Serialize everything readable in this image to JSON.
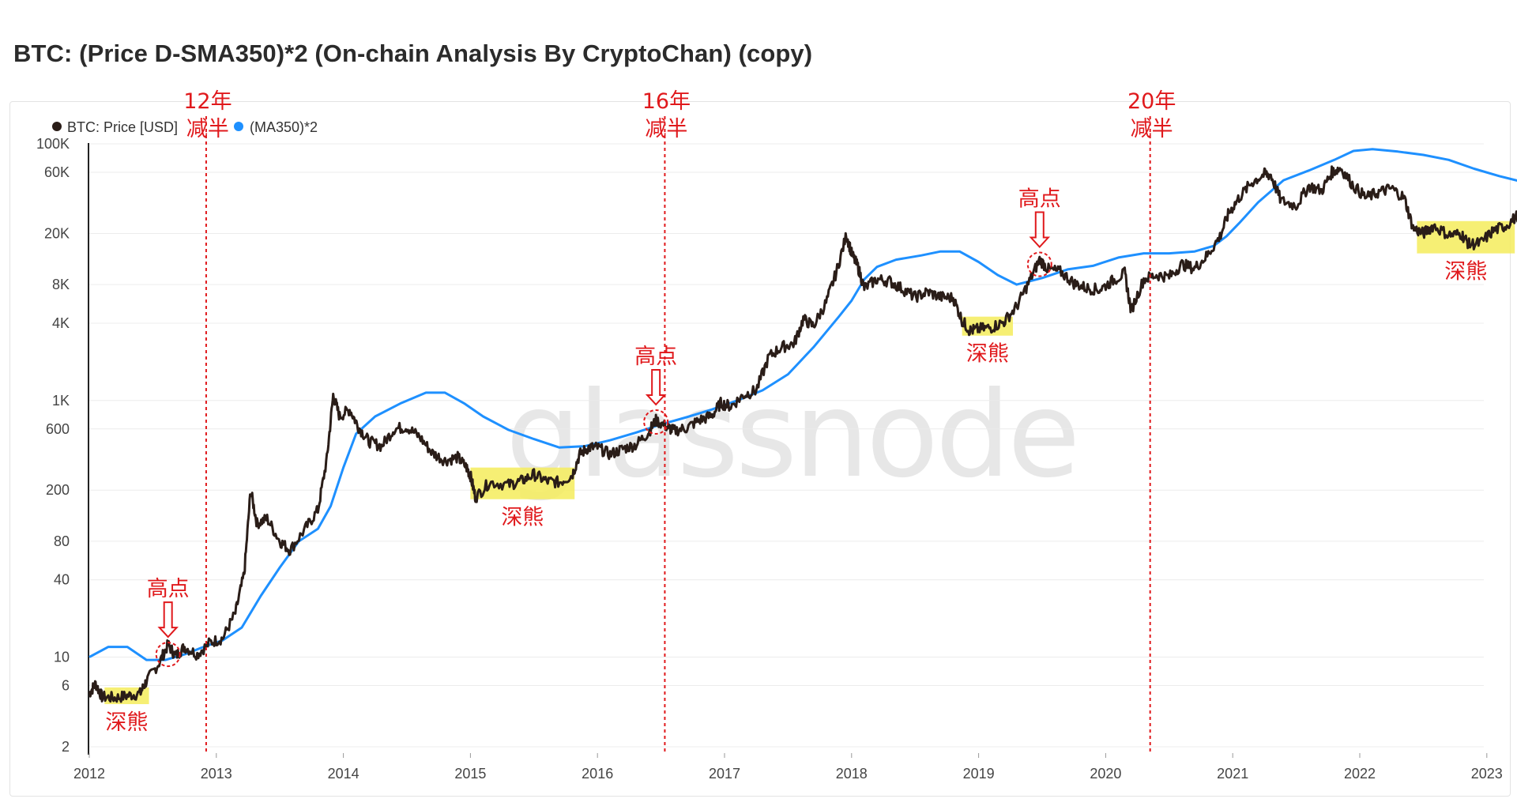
{
  "title": "BTC: (Price D-SMA350)*2 (On-chain Analysis By CryptoChan) (copy)",
  "watermark": "glassnode",
  "chart_data": {
    "type": "line",
    "title": "BTC: (Price D-SMA350)*2 (On-chain Analysis By CryptoChan) (copy)",
    "x_axis": {
      "type": "time",
      "range": [
        2012.0,
        2023.33
      ],
      "tick_labels": [
        "2012",
        "2013",
        "2014",
        "2015",
        "2016",
        "2017",
        "2018",
        "2019",
        "2020",
        "2021",
        "2022",
        "2023"
      ]
    },
    "y_axis": {
      "scale": "log",
      "range": [
        2,
        100000
      ],
      "tick_values": [
        2,
        6,
        10,
        40,
        80,
        200,
        600,
        1000,
        4000,
        8000,
        20000,
        60000,
        100000
      ],
      "tick_labels": [
        "2",
        "6",
        "10",
        "40",
        "80",
        "200",
        "600",
        "1K",
        "4K",
        "8K",
        "20K",
        "60K",
        "100K"
      ]
    },
    "legend": {
      "position": "top-left"
    },
    "series": [
      {
        "name": "BTC: Price [USD]",
        "color": "#2a1d18",
        "points": [
          [
            2012.0,
            5.2
          ],
          [
            2012.05,
            6.2
          ],
          [
            2012.1,
            4.9
          ],
          [
            2012.2,
            4.8
          ],
          [
            2012.3,
            5.0
          ],
          [
            2012.4,
            5.2
          ],
          [
            2012.45,
            6.5
          ],
          [
            2012.55,
            9.0
          ],
          [
            2012.62,
            12.5
          ],
          [
            2012.68,
            10.2
          ],
          [
            2012.75,
            12.0
          ],
          [
            2012.85,
            10.5
          ],
          [
            2012.95,
            13.0
          ],
          [
            2013.05,
            14.0
          ],
          [
            2013.15,
            22.0
          ],
          [
            2013.22,
            45.0
          ],
          [
            2013.27,
            200.0
          ],
          [
            2013.32,
            110.0
          ],
          [
            2013.4,
            120.0
          ],
          [
            2013.5,
            80.0
          ],
          [
            2013.58,
            68.0
          ],
          [
            2013.7,
            100.0
          ],
          [
            2013.8,
            140.0
          ],
          [
            2013.87,
            350.0
          ],
          [
            2013.92,
            1100.0
          ],
          [
            2013.97,
            750.0
          ],
          [
            2014.05,
            850.0
          ],
          [
            2014.12,
            620.0
          ],
          [
            2014.2,
            480.0
          ],
          [
            2014.3,
            440.0
          ],
          [
            2014.4,
            600.0
          ],
          [
            2014.5,
            620.0
          ],
          [
            2014.6,
            520.0
          ],
          [
            2014.7,
            390.0
          ],
          [
            2014.8,
            340.0
          ],
          [
            2014.9,
            360.0
          ],
          [
            2014.97,
            300.0
          ],
          [
            2015.0,
            260.0
          ],
          [
            2015.04,
            175.0
          ],
          [
            2015.15,
            230.0
          ],
          [
            2015.3,
            220.0
          ],
          [
            2015.4,
            235.0
          ],
          [
            2015.5,
            265.0
          ],
          [
            2015.6,
            235.0
          ],
          [
            2015.7,
            230.0
          ],
          [
            2015.8,
            260.0
          ],
          [
            2015.86,
            380.0
          ],
          [
            2015.93,
            430.0
          ],
          [
            2016.0,
            430.0
          ],
          [
            2016.1,
            380.0
          ],
          [
            2016.2,
            420.0
          ],
          [
            2016.3,
            450.0
          ],
          [
            2016.4,
            560.0
          ],
          [
            2016.46,
            700.0
          ],
          [
            2016.55,
            620.0
          ],
          [
            2016.6,
            580.0
          ],
          [
            2016.7,
            610.0
          ],
          [
            2016.8,
            700.0
          ],
          [
            2016.9,
            760.0
          ],
          [
            2016.97,
            950.0
          ],
          [
            2017.05,
            900.0
          ],
          [
            2017.15,
            1100.0
          ],
          [
            2017.25,
            1200.0
          ],
          [
            2017.35,
            2200.0
          ],
          [
            2017.45,
            2600.0
          ],
          [
            2017.55,
            2800.0
          ],
          [
            2017.62,
            4300.0
          ],
          [
            2017.7,
            3800.0
          ],
          [
            2017.8,
            5800.0
          ],
          [
            2017.88,
            10000.0
          ],
          [
            2017.96,
            19500.0
          ],
          [
            2018.0,
            14000.0
          ],
          [
            2018.05,
            11000.0
          ],
          [
            2018.1,
            7500.0
          ],
          [
            2018.2,
            8800.0
          ],
          [
            2018.3,
            8500.0
          ],
          [
            2018.4,
            7400.0
          ],
          [
            2018.5,
            6400.0
          ],
          [
            2018.6,
            7000.0
          ],
          [
            2018.7,
            6400.0
          ],
          [
            2018.8,
            6300.0
          ],
          [
            2018.87,
            4200.0
          ],
          [
            2018.93,
            3500.0
          ],
          [
            2019.0,
            3600.0
          ],
          [
            2019.1,
            3700.0
          ],
          [
            2019.2,
            4100.0
          ],
          [
            2019.3,
            5400.0
          ],
          [
            2019.4,
            8500.0
          ],
          [
            2019.48,
            12500.0
          ],
          [
            2019.55,
            10500.0
          ],
          [
            2019.65,
            10000.0
          ],
          [
            2019.75,
            8200.0
          ],
          [
            2019.85,
            7500.0
          ],
          [
            2019.95,
            7300.0
          ],
          [
            2020.05,
            8500.0
          ],
          [
            2020.15,
            9800.0
          ],
          [
            2020.2,
            5000.0
          ],
          [
            2020.3,
            8800.0
          ],
          [
            2020.4,
            9500.0
          ],
          [
            2020.5,
            9200.0
          ],
          [
            2020.6,
            11500.0
          ],
          [
            2020.7,
            10700.0
          ],
          [
            2020.8,
            13500.0
          ],
          [
            2020.9,
            19000.0
          ],
          [
            2020.97,
            29000.0
          ],
          [
            2021.05,
            38000.0
          ],
          [
            2021.15,
            50000.0
          ],
          [
            2021.25,
            58000.0
          ],
          [
            2021.3,
            57000.0
          ],
          [
            2021.38,
            36000.0
          ],
          [
            2021.5,
            33000.0
          ],
          [
            2021.6,
            47000.0
          ],
          [
            2021.7,
            43000.0
          ],
          [
            2021.78,
            60000.0
          ],
          [
            2021.85,
            65000.0
          ],
          [
            2021.95,
            47000.0
          ],
          [
            2022.05,
            38000.0
          ],
          [
            2022.15,
            42000.0
          ],
          [
            2022.25,
            45000.0
          ],
          [
            2022.35,
            38000.0
          ],
          [
            2022.42,
            22000.0
          ],
          [
            2022.5,
            20000.0
          ],
          [
            2022.58,
            23000.0
          ],
          [
            2022.7,
            19500.0
          ],
          [
            2022.8,
            19800.0
          ],
          [
            2022.86,
            16500.0
          ],
          [
            2022.95,
            16800.0
          ],
          [
            2023.05,
            21000.0
          ],
          [
            2023.15,
            23000.0
          ],
          [
            2023.25,
            28000.0
          ],
          [
            2023.3,
            28000.0
          ]
        ]
      },
      {
        "name": "(MA350)*2",
        "color": "#1e90ff",
        "points": [
          [
            2012.0,
            10.0
          ],
          [
            2012.15,
            12.0
          ],
          [
            2012.3,
            12.0
          ],
          [
            2012.45,
            9.5
          ],
          [
            2012.6,
            9.5
          ],
          [
            2012.75,
            10.5
          ],
          [
            2012.9,
            12.0
          ],
          [
            2013.05,
            13.5
          ],
          [
            2013.2,
            17.0
          ],
          [
            2013.35,
            30.0
          ],
          [
            2013.5,
            50.0
          ],
          [
            2013.65,
            80.0
          ],
          [
            2013.8,
            100.0
          ],
          [
            2013.9,
            150.0
          ],
          [
            2014.0,
            300.0
          ],
          [
            2014.1,
            550.0
          ],
          [
            2014.25,
            750.0
          ],
          [
            2014.45,
            950.0
          ],
          [
            2014.65,
            1150.0
          ],
          [
            2014.8,
            1150.0
          ],
          [
            2014.95,
            950.0
          ],
          [
            2015.1,
            750.0
          ],
          [
            2015.3,
            590.0
          ],
          [
            2015.5,
            500.0
          ],
          [
            2015.7,
            430.0
          ],
          [
            2015.9,
            440.0
          ],
          [
            2016.1,
            490.0
          ],
          [
            2016.3,
            560.0
          ],
          [
            2016.5,
            650.0
          ],
          [
            2016.7,
            740.0
          ],
          [
            2016.9,
            850.0
          ],
          [
            2017.1,
            1000.0
          ],
          [
            2017.3,
            1200.0
          ],
          [
            2017.5,
            1600.0
          ],
          [
            2017.7,
            2600.0
          ],
          [
            2017.9,
            4500.0
          ],
          [
            2018.0,
            6000.0
          ],
          [
            2018.1,
            8800.0
          ],
          [
            2018.2,
            11000.0
          ],
          [
            2018.35,
            12500.0
          ],
          [
            2018.55,
            13500.0
          ],
          [
            2018.7,
            14500.0
          ],
          [
            2018.85,
            14500.0
          ],
          [
            2019.0,
            12000.0
          ],
          [
            2019.15,
            9500.0
          ],
          [
            2019.3,
            8000.0
          ],
          [
            2019.5,
            9000.0
          ],
          [
            2019.7,
            10500.0
          ],
          [
            2019.9,
            11200.0
          ],
          [
            2020.1,
            13000.0
          ],
          [
            2020.3,
            14000.0
          ],
          [
            2020.5,
            14000.0
          ],
          [
            2020.7,
            14500.0
          ],
          [
            2020.85,
            16000.0
          ],
          [
            2020.95,
            19000.0
          ],
          [
            2021.05,
            24000.0
          ],
          [
            2021.2,
            35000.0
          ],
          [
            2021.4,
            52000.0
          ],
          [
            2021.6,
            62000.0
          ],
          [
            2021.8,
            75000.0
          ],
          [
            2021.95,
            88000.0
          ],
          [
            2022.1,
            91000.0
          ],
          [
            2022.3,
            87000.0
          ],
          [
            2022.5,
            82000.0
          ],
          [
            2022.7,
            75000.0
          ],
          [
            2022.9,
            64000.0
          ],
          [
            2023.1,
            56000.0
          ],
          [
            2023.3,
            50000.0
          ]
        ]
      }
    ],
    "annotations": {
      "halving_lines": [
        {
          "x": 2012.92,
          "label_line1": "12年",
          "label_line2": "减半"
        },
        {
          "x": 2016.53,
          "label_line1": "16年",
          "label_line2": "减半"
        },
        {
          "x": 2020.35,
          "label_line1": "20年",
          "label_line2": "减半"
        }
      ],
      "peaks": [
        {
          "x": 2012.62,
          "y": 10.5,
          "label": "高点"
        },
        {
          "x": 2016.46,
          "y": 680.0,
          "label": "高点"
        },
        {
          "x": 2019.48,
          "y": 11500.0,
          "label": "高点"
        }
      ],
      "deep_bears": [
        {
          "x0": 2012.12,
          "x1": 2012.47,
          "y_low": 4.3,
          "y_high": 5.8,
          "label": "深熊"
        },
        {
          "x0": 2015.0,
          "x1": 2015.82,
          "y_low": 170.0,
          "y_high": 300.0,
          "label": "深熊"
        },
        {
          "x0": 2018.87,
          "x1": 2019.27,
          "y_low": 3200.0,
          "y_high": 4500.0,
          "label": "深熊"
        },
        {
          "x0": 2022.45,
          "x1": 2023.22,
          "y_low": 14000.0,
          "y_high": 25000.0,
          "label": "深熊"
        }
      ]
    }
  }
}
